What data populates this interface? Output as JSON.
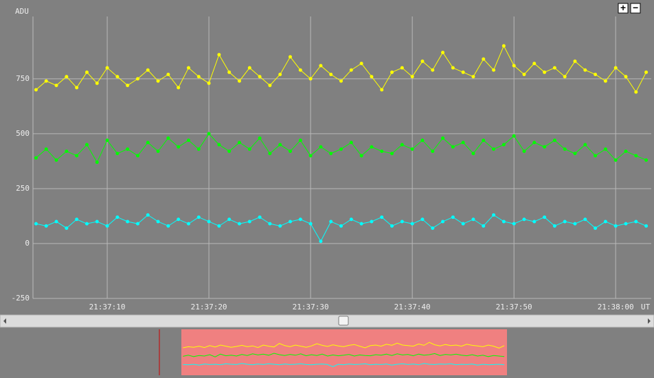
{
  "chart_data": {
    "type": "line",
    "y_label": "ADU",
    "x_label": "UT",
    "x": [
      3,
      4,
      5,
      6,
      7,
      8,
      9,
      10,
      11,
      12,
      13,
      14,
      15,
      16,
      17,
      18,
      19,
      20,
      21,
      22,
      23,
      24,
      25,
      26,
      27,
      28,
      29,
      30,
      31,
      32,
      33,
      34,
      35,
      36,
      37,
      38,
      39,
      40,
      41,
      42,
      43,
      44,
      45,
      46,
      47,
      48,
      49,
      50,
      51,
      52,
      53,
      54,
      55,
      56,
      57,
      58,
      59,
      60,
      61,
      62,
      63
    ],
    "series": [
      {
        "color": "#ffff00",
        "values": [
          700,
          740,
          720,
          760,
          710,
          780,
          730,
          800,
          760,
          720,
          750,
          790,
          740,
          770,
          710,
          800,
          760,
          730,
          860,
          780,
          740,
          800,
          760,
          720,
          770,
          850,
          790,
          750,
          810,
          770,
          740,
          790,
          820,
          760,
          700,
          780,
          800,
          760,
          830,
          790,
          870,
          800,
          780,
          760,
          840,
          790,
          900,
          810,
          770,
          820,
          780,
          800,
          760,
          830,
          790,
          770,
          740,
          800,
          760,
          690,
          780
        ]
      },
      {
        "color": "#00ff00",
        "values": [
          390,
          430,
          380,
          420,
          400,
          450,
          370,
          470,
          410,
          430,
          400,
          460,
          420,
          480,
          440,
          470,
          430,
          500,
          450,
          420,
          460,
          430,
          480,
          410,
          450,
          420,
          470,
          400,
          440,
          410,
          430,
          460,
          400,
          440,
          420,
          410,
          450,
          430,
          470,
          420,
          480,
          440,
          460,
          410,
          470,
          430,
          450,
          490,
          420,
          460,
          440,
          470,
          430,
          410,
          450,
          400,
          430,
          380,
          420,
          400,
          380
        ]
      },
      {
        "color": "#00ffff",
        "values": [
          90,
          80,
          100,
          70,
          110,
          90,
          100,
          80,
          120,
          100,
          90,
          130,
          100,
          80,
          110,
          90,
          120,
          100,
          80,
          110,
          90,
          100,
          120,
          90,
          80,
          100,
          110,
          90,
          10,
          100,
          80,
          110,
          90,
          100,
          120,
          80,
          100,
          90,
          110,
          70,
          100,
          120,
          90,
          110,
          80,
          130,
          100,
          90,
          110,
          100,
          120,
          80,
          100,
          90,
          110,
          70,
          100,
          80,
          90,
          100,
          80
        ]
      }
    ],
    "xlim": [
      2.7,
      63.5
    ],
    "xticks": [
      {
        "value": 10,
        "label": "21:37:10"
      },
      {
        "value": 20,
        "label": "21:37:20"
      },
      {
        "value": 30,
        "label": "21:37:30"
      },
      {
        "value": 40,
        "label": "21:37:40"
      },
      {
        "value": 50,
        "label": "21:37:50"
      },
      {
        "value": 60,
        "label": "21:38:00"
      }
    ],
    "ylim": [
      -250,
      1034
    ],
    "yticks": [
      -250,
      0,
      250,
      500,
      750
    ],
    "grid": true
  },
  "ui": {
    "zoom_in": "+",
    "zoom_out": "−"
  }
}
